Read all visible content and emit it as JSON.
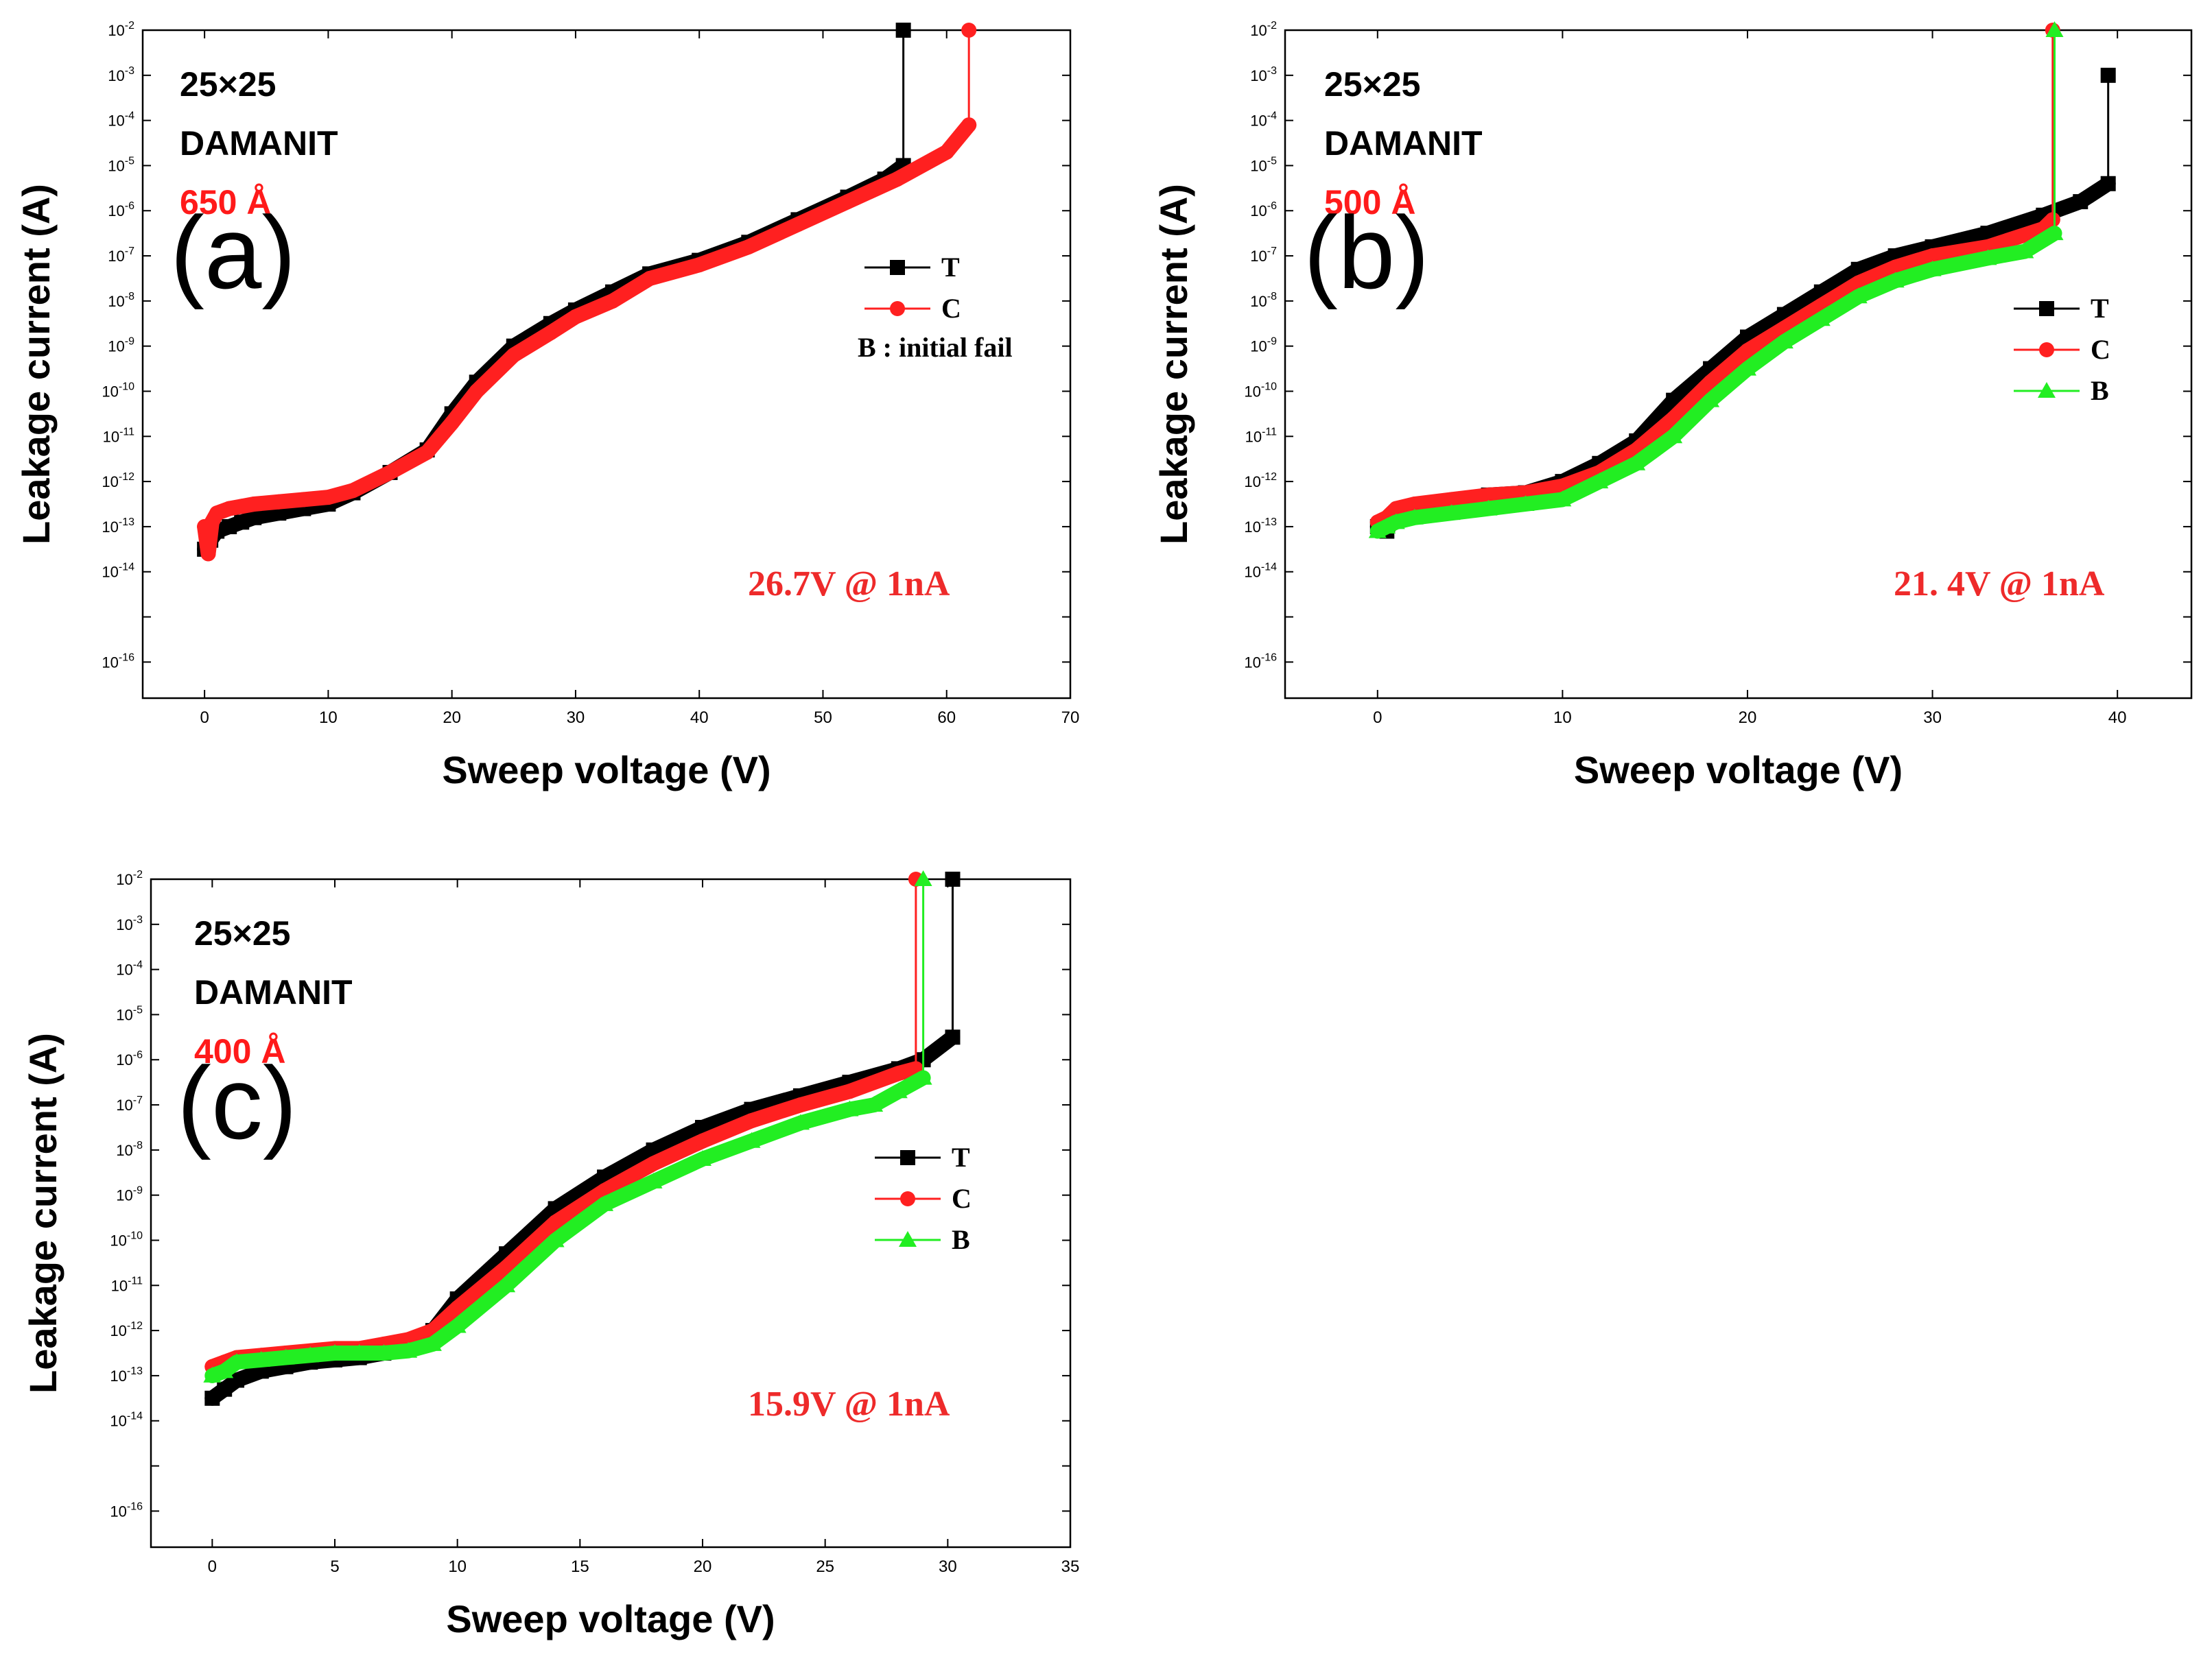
{
  "chart_data": [
    {
      "type": "scatter",
      "panel": "(a)",
      "xlabel": "Sweep voltage (V)",
      "ylabel": "Leakage current (A)",
      "x_ticks": [
        "0",
        "10",
        "20",
        "30",
        "40",
        "50",
        "60",
        "70"
      ],
      "xlim": [
        -5,
        70
      ],
      "y_log": true,
      "ylim_exponent": [
        -16.8,
        -2
      ],
      "annotations": [
        {
          "text": "25×25",
          "color": "#000000"
        },
        {
          "text": "DAMANIT",
          "color": "#000000"
        },
        {
          "text": "650 Å",
          "color": "#ff1a1a"
        }
      ],
      "measurement": {
        "text": "26.7V @ 1nA",
        "color": "#ee2a2a"
      },
      "legend_note": "B : initial fail",
      "series": [
        {
          "name": "T",
          "color": "#000000",
          "marker": "square",
          "breakdown_x": 56.5,
          "x": [
            0,
            0.5,
            1,
            2,
            3,
            4,
            6,
            8,
            10,
            12,
            15,
            18,
            20,
            22,
            25,
            28,
            30,
            33,
            36,
            40,
            44,
            48,
            52,
            55,
            56.5
          ],
          "log_y": [
            -13.5,
            -13.3,
            -13.1,
            -13.0,
            -12.9,
            -12.8,
            -12.7,
            -12.6,
            -12.5,
            -12.25,
            -11.8,
            -11.3,
            -10.5,
            -9.8,
            -9.0,
            -8.5,
            -8.2,
            -7.8,
            -7.4,
            -7.1,
            -6.7,
            -6.2,
            -5.7,
            -5.3,
            -5.0
          ]
        },
        {
          "name": "C",
          "color": "#ff2020",
          "marker": "circle",
          "breakdown_x": 61.8,
          "x": [
            0,
            0.3,
            0.6,
            1,
            2,
            3,
            4,
            6,
            8,
            10,
            12,
            15,
            18,
            20,
            22,
            25,
            28,
            30,
            33,
            36,
            40,
            44,
            48,
            52,
            56,
            60,
            61.8
          ],
          "log_y": [
            -13.0,
            -13.6,
            -12.9,
            -12.7,
            -12.6,
            -12.55,
            -12.5,
            -12.45,
            -12.4,
            -12.35,
            -12.2,
            -11.8,
            -11.35,
            -10.7,
            -10.0,
            -9.2,
            -8.7,
            -8.35,
            -8.0,
            -7.5,
            -7.2,
            -6.8,
            -6.3,
            -5.8,
            -5.3,
            -4.7,
            -4.1
          ]
        }
      ]
    },
    {
      "type": "scatter",
      "panel": "(b)",
      "xlabel": "Sweep voltage (V)",
      "ylabel": "Leakage current (A)",
      "x_ticks": [
        "0",
        "10",
        "20",
        "30",
        "40"
      ],
      "xlim": [
        -5,
        44
      ],
      "y_log": true,
      "ylim_exponent": [
        -16.8,
        -2
      ],
      "annotations": [
        {
          "text": "25×25",
          "color": "#000000"
        },
        {
          "text": "DAMANIT",
          "color": "#000000"
        },
        {
          "text": "500 Å",
          "color": "#ff1a1a"
        }
      ],
      "measurement": {
        "text": "21. 4V @ 1nA",
        "color": "#ee2a2a"
      },
      "series": [
        {
          "name": "T",
          "color": "#000000",
          "marker": "square",
          "breakdown_x": 39.5,
          "breakdown_top_exponent": -3,
          "x": [
            0,
            0.5,
            1,
            2,
            4,
            6,
            8,
            10,
            12,
            14,
            16,
            18,
            20,
            22,
            24,
            26,
            28,
            30,
            33,
            36,
            38,
            39.5
          ],
          "log_y": [
            -13.0,
            -13.1,
            -12.7,
            -12.6,
            -12.5,
            -12.3,
            -12.25,
            -12.0,
            -11.6,
            -11.1,
            -10.2,
            -9.5,
            -8.8,
            -8.3,
            -7.8,
            -7.3,
            -7.0,
            -6.8,
            -6.5,
            -6.1,
            -5.8,
            -5.4
          ]
        },
        {
          "name": "C",
          "color": "#ff2020",
          "marker": "circle",
          "breakdown_x": 36.5,
          "x": [
            0,
            0.5,
            1,
            2,
            4,
            6,
            8,
            10,
            12,
            14,
            16,
            18,
            20,
            22,
            24,
            26,
            28,
            30,
            33,
            36,
            36.5
          ],
          "log_y": [
            -12.9,
            -12.8,
            -12.6,
            -12.5,
            -12.4,
            -12.3,
            -12.25,
            -12.1,
            -11.8,
            -11.3,
            -10.6,
            -9.8,
            -9.1,
            -8.6,
            -8.1,
            -7.6,
            -7.25,
            -7.0,
            -6.8,
            -6.4,
            -6.2
          ]
        },
        {
          "name": "B",
          "color": "#22ee22",
          "marker": "triangle",
          "breakdown_x": 36.6,
          "x": [
            0,
            0.5,
            1,
            2,
            4,
            6,
            8,
            10,
            12,
            14,
            16,
            18,
            20,
            22,
            24,
            26,
            28,
            30,
            33,
            35,
            36.6
          ],
          "log_y": [
            -13.1,
            -13.0,
            -12.9,
            -12.8,
            -12.7,
            -12.6,
            -12.5,
            -12.4,
            -12.0,
            -11.6,
            -11.0,
            -10.2,
            -9.5,
            -8.9,
            -8.4,
            -7.9,
            -7.55,
            -7.3,
            -7.05,
            -6.9,
            -6.5
          ]
        }
      ]
    },
    {
      "type": "scatter",
      "panel": "(c)",
      "xlabel": "Sweep voltage (V)",
      "ylabel": "Leakage current (A)",
      "x_ticks": [
        "0",
        "5",
        "10",
        "15",
        "20",
        "25",
        "30",
        "35"
      ],
      "xlim": [
        -2.5,
        35
      ],
      "y_log": true,
      "ylim_exponent": [
        -16.8,
        -2
      ],
      "annotations": [
        {
          "text": "25×25",
          "color": "#000000"
        },
        {
          "text": "DAMANIT",
          "color": "#000000"
        },
        {
          "text": "400 Å",
          "color": "#ff1a1a"
        }
      ],
      "measurement": {
        "text": "15.9V @ 1nA",
        "color": "#ee2a2a"
      },
      "series": [
        {
          "name": "T",
          "color": "#000000",
          "marker": "square",
          "breakdown_x": 30.2,
          "x": [
            0,
            0.5,
            1,
            2,
            3,
            4,
            5,
            6,
            7,
            8,
            9,
            10,
            12,
            14,
            16,
            18,
            20,
            22,
            24,
            26,
            28,
            29,
            30.2
          ],
          "log_y": [
            -13.5,
            -13.3,
            -13.1,
            -12.9,
            -12.8,
            -12.7,
            -12.65,
            -12.6,
            -12.5,
            -12.4,
            -12.0,
            -11.3,
            -10.3,
            -9.3,
            -8.6,
            -8.0,
            -7.5,
            -7.1,
            -6.8,
            -6.5,
            -6.2,
            -6.0,
            -5.5
          ]
        },
        {
          "name": "C",
          "color": "#ff2020",
          "marker": "circle",
          "breakdown_x": 28.7,
          "x": [
            0,
            0.5,
            1,
            2,
            3,
            4,
            5,
            6,
            7,
            8,
            9,
            10,
            12,
            14,
            16,
            18,
            20,
            22,
            24,
            26,
            28,
            28.7
          ],
          "log_y": [
            -12.8,
            -12.7,
            -12.6,
            -12.55,
            -12.5,
            -12.45,
            -12.4,
            -12.4,
            -12.3,
            -12.2,
            -12.0,
            -11.5,
            -10.6,
            -9.6,
            -8.9,
            -8.3,
            -7.8,
            -7.35,
            -7.0,
            -6.7,
            -6.3,
            -6.2
          ]
        },
        {
          "name": "B",
          "color": "#22ee22",
          "marker": "triangle",
          "breakdown_x": 29.0,
          "x": [
            0,
            0.5,
            1,
            2,
            3,
            4,
            5,
            6,
            7,
            8,
            9,
            10,
            12,
            14,
            16,
            18,
            20,
            22,
            24,
            26,
            27,
            28,
            29.0
          ],
          "log_y": [
            -13.0,
            -12.9,
            -12.7,
            -12.65,
            -12.6,
            -12.55,
            -12.5,
            -12.5,
            -12.5,
            -12.45,
            -12.3,
            -11.9,
            -11.0,
            -10.0,
            -9.2,
            -8.7,
            -8.2,
            -7.8,
            -7.4,
            -7.1,
            -7.0,
            -6.7,
            -6.4
          ]
        }
      ]
    }
  ]
}
